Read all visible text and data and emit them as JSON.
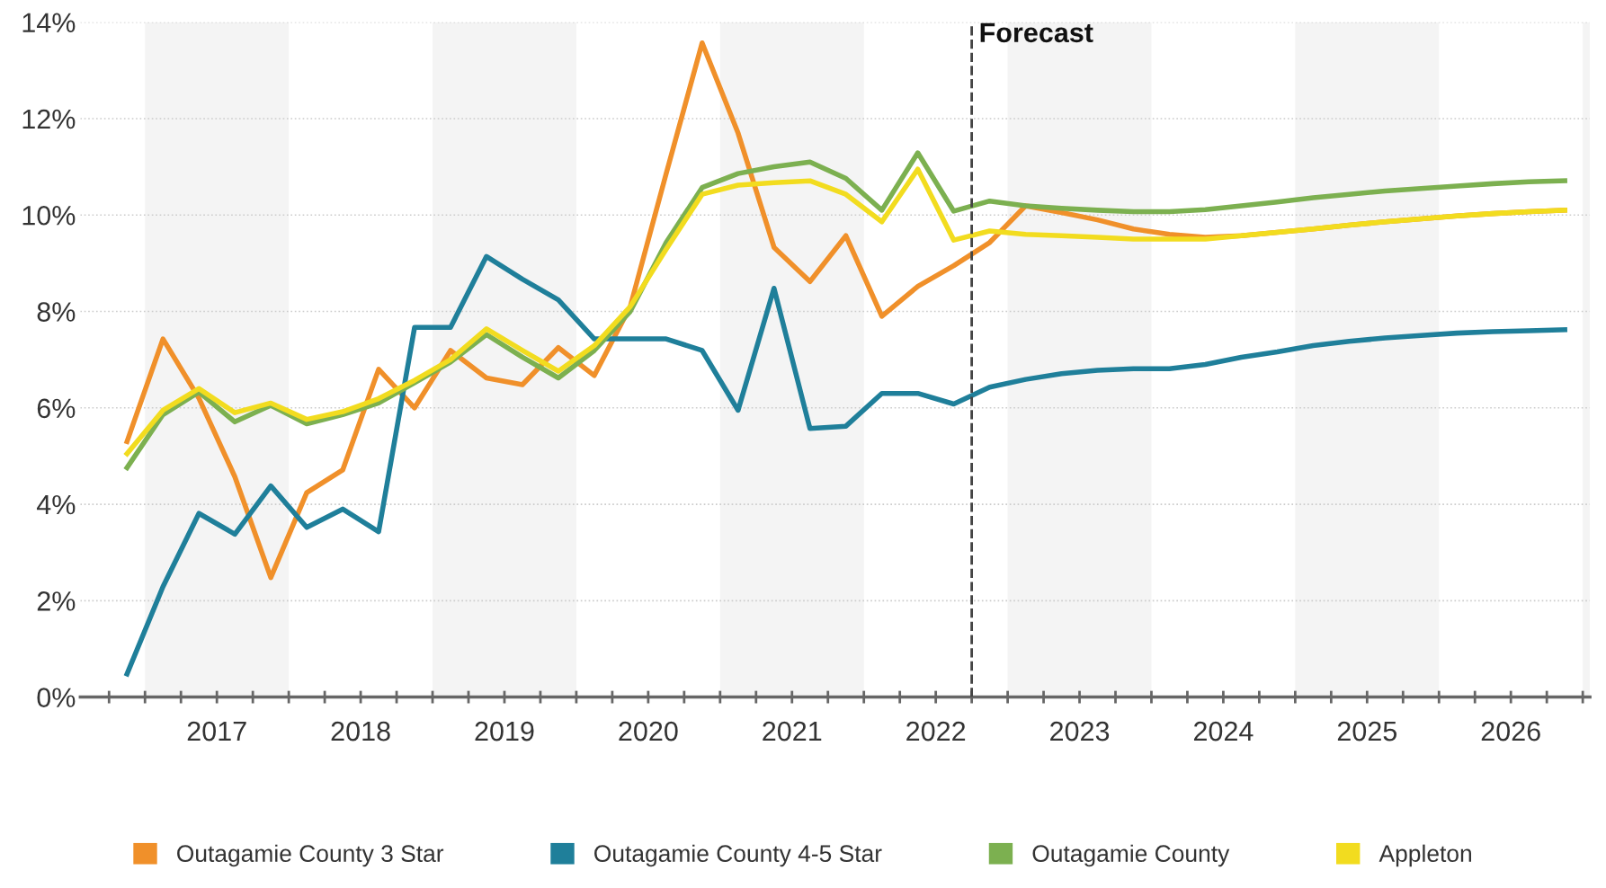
{
  "chart_data": {
    "type": "line",
    "x": [
      2016.875,
      2017.125,
      2017.375,
      2017.625,
      2017.875,
      2018.125,
      2018.375,
      2018.625,
      2018.875,
      2019.125,
      2019.375,
      2019.625,
      2019.875,
      2020.125,
      2020.375,
      2020.625,
      2020.875,
      2021.125,
      2021.375,
      2021.625,
      2021.875,
      2022.125,
      2022.375,
      2022.625,
      2022.875,
      2023.125,
      2023.375,
      2023.625,
      2023.875,
      2024.125,
      2024.375,
      2024.625,
      2024.875,
      2025.125,
      2025.375,
      2025.625,
      2025.875,
      2026.125,
      2026.375,
      2026.625,
      2026.875
    ],
    "series": [
      {
        "name": "Outagamie County 3 Star",
        "color": "#f0902a",
        "values": [
          5.3,
          7.43,
          6.2,
          4.57,
          2.48,
          4.24,
          4.71,
          6.8,
          6.0,
          7.19,
          6.62,
          6.48,
          7.25,
          6.67,
          8.1,
          10.86,
          13.57,
          11.7,
          9.33,
          8.62,
          9.57,
          7.9,
          8.52,
          8.95,
          9.43,
          10.19,
          10.05,
          9.9,
          9.71,
          9.6,
          9.54,
          9.57,
          9.64,
          9.71,
          9.79,
          9.86,
          9.92,
          9.98,
          10.03,
          10.07,
          10.1
        ]
      },
      {
        "name": "Outagamie County 4-5 Star",
        "color": "#1f7f9a",
        "values": [
          0.48,
          2.29,
          3.81,
          3.38,
          4.38,
          3.52,
          3.9,
          3.43,
          7.67,
          7.67,
          9.14,
          8.67,
          8.24,
          7.43,
          7.43,
          7.43,
          7.19,
          5.95,
          8.48,
          5.57,
          5.62,
          6.3,
          6.3,
          6.08,
          6.43,
          6.59,
          6.71,
          6.78,
          6.81,
          6.81,
          6.9,
          7.05,
          7.16,
          7.29,
          7.38,
          7.45,
          7.5,
          7.55,
          7.58,
          7.6,
          7.62
        ]
      },
      {
        "name": "Outagamie County",
        "color": "#7cb050",
        "values": [
          4.76,
          5.86,
          6.33,
          5.71,
          6.05,
          5.67,
          5.86,
          6.1,
          6.52,
          6.95,
          7.52,
          7.05,
          6.62,
          7.19,
          8.0,
          9.43,
          10.57,
          10.86,
          11.0,
          11.1,
          10.76,
          10.1,
          11.29,
          10.08,
          10.29,
          10.19,
          10.14,
          10.1,
          10.07,
          10.07,
          10.11,
          10.19,
          10.27,
          10.36,
          10.43,
          10.5,
          10.55,
          10.6,
          10.65,
          10.69,
          10.71
        ]
      },
      {
        "name": "Appleton",
        "color": "#f2dc1f",
        "values": [
          5.05,
          5.95,
          6.4,
          5.9,
          6.1,
          5.76,
          5.92,
          6.19,
          6.57,
          7.0,
          7.64,
          7.19,
          6.76,
          7.29,
          8.1,
          9.29,
          10.43,
          10.62,
          10.67,
          10.71,
          10.43,
          9.86,
          10.95,
          9.48,
          9.67,
          9.6,
          9.57,
          9.54,
          9.5,
          9.5,
          9.5,
          9.57,
          9.64,
          9.71,
          9.79,
          9.86,
          9.92,
          9.98,
          10.03,
          10.07,
          10.1
        ]
      }
    ],
    "xlim": [
      2016.55,
      2027.05
    ],
    "xticks": [
      {
        "value": 2016.75,
        "label": null
      },
      {
        "value": 2017,
        "label": null
      },
      {
        "value": 2017.25,
        "label": null
      },
      {
        "value": 2017.5,
        "label": "2017"
      },
      {
        "value": 2017.75,
        "label": null
      },
      {
        "value": 2018,
        "label": null
      },
      {
        "value": 2018.25,
        "label": null
      },
      {
        "value": 2018.5,
        "label": "2018"
      },
      {
        "value": 2018.75,
        "label": null
      },
      {
        "value": 2019,
        "label": null
      },
      {
        "value": 2019.25,
        "label": null
      },
      {
        "value": 2019.5,
        "label": "2019"
      },
      {
        "value": 2019.75,
        "label": null
      },
      {
        "value": 2020,
        "label": null
      },
      {
        "value": 2020.25,
        "label": null
      },
      {
        "value": 2020.5,
        "label": "2020"
      },
      {
        "value": 2020.75,
        "label": null
      },
      {
        "value": 2021,
        "label": null
      },
      {
        "value": 2021.25,
        "label": null
      },
      {
        "value": 2021.5,
        "label": "2021"
      },
      {
        "value": 2021.75,
        "label": null
      },
      {
        "value": 2022,
        "label": null
      },
      {
        "value": 2022.25,
        "label": null
      },
      {
        "value": 2022.5,
        "label": "2022"
      },
      {
        "value": 2022.75,
        "label": null
      },
      {
        "value": 2023,
        "label": null
      },
      {
        "value": 2023.25,
        "label": null
      },
      {
        "value": 2023.5,
        "label": "2023"
      },
      {
        "value": 2023.75,
        "label": null
      },
      {
        "value": 2024,
        "label": null
      },
      {
        "value": 2024.25,
        "label": null
      },
      {
        "value": 2024.5,
        "label": "2024"
      },
      {
        "value": 2024.75,
        "label": null
      },
      {
        "value": 2025,
        "label": null
      },
      {
        "value": 2025.25,
        "label": null
      },
      {
        "value": 2025.5,
        "label": "2025"
      },
      {
        "value": 2025.75,
        "label": null
      },
      {
        "value": 2026,
        "label": null
      },
      {
        "value": 2026.25,
        "label": null
      },
      {
        "value": 2026.5,
        "label": "2026"
      },
      {
        "value": 2026.75,
        "label": null
      },
      {
        "value": 2027,
        "label": null
      }
    ],
    "ylim": [
      0,
      14
    ],
    "yticks": [
      {
        "value": 0,
        "label": "0%"
      },
      {
        "value": 2,
        "label": "2%"
      },
      {
        "value": 4,
        "label": "4%"
      },
      {
        "value": 6,
        "label": "6%"
      },
      {
        "value": 8,
        "label": "8%"
      },
      {
        "value": 10,
        "label": "10%"
      },
      {
        "value": 12,
        "label": "12%"
      },
      {
        "value": 14,
        "label": "14%"
      }
    ],
    "ref_lines": [
      {
        "axis": "x",
        "value": 2022.75,
        "label": "Forecast",
        "color": "#444444",
        "line_style": "dashed"
      }
    ],
    "bands": [
      {
        "axis": "x",
        "from": 2017,
        "to": 2018,
        "color": "#f4f4f4"
      },
      {
        "axis": "x",
        "from": 2019,
        "to": 2020,
        "color": "#f4f4f4"
      },
      {
        "axis": "x",
        "from": 2021,
        "to": 2022,
        "color": "#f4f4f4"
      },
      {
        "axis": "x",
        "from": 2023,
        "to": 2024,
        "color": "#f4f4f4"
      },
      {
        "axis": "x",
        "from": 2025,
        "to": 2026,
        "color": "#f4f4f4"
      },
      {
        "axis": "x",
        "from": 2027,
        "to": 2027.05,
        "color": "#f4f4f4"
      }
    ],
    "grid": "y",
    "legend": "bottom",
    "marker": "none",
    "line_style": "solid"
  }
}
